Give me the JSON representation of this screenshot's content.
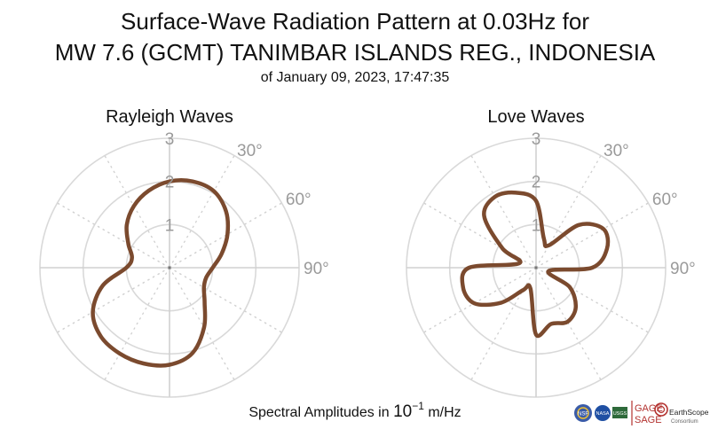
{
  "title": {
    "line1": "Surface-Wave Radiation Pattern at 0.03Hz for",
    "line2": "MW 7.6 (GCMT) TANIMBAR ISLANDS REG., INDONESIA",
    "line3": "of January 09, 2023, 17:47:35"
  },
  "caption": {
    "prefix": "Spectral Amplitudes in ",
    "base": "10",
    "exponent": "−1",
    "unit": " m/Hz"
  },
  "logos": {
    "gage": "GAGE",
    "sage": "SAGE",
    "earthscope": "EarthScope",
    "consortium": "Consortium",
    "usgs": "USGS",
    "nsf": "NSF",
    "nasa": "NASA",
    "colors": {
      "brand_red": "#b3322f",
      "usgs_green": "#2e6a3a",
      "nsf_blue": "#3b5ca8",
      "nasa_blue": "#1f4fa3"
    }
  },
  "chart_data": [
    {
      "type": "polar-line",
      "title": "Rayleigh Waves",
      "r_ticks": [
        "1",
        "2",
        "3"
      ],
      "r_max": 3,
      "theta_zero": "top",
      "theta_direction": "clockwise",
      "theta_labels": [
        "30°",
        "60°",
        "90°"
      ],
      "grid": true,
      "color": "#7b4a2e",
      "series": [
        {
          "theta_deg": [
            0,
            15,
            30,
            45,
            60,
            75,
            90,
            105,
            120,
            135,
            150,
            165,
            180,
            195,
            210,
            225,
            240,
            255,
            270,
            285,
            300,
            315,
            330,
            345
          ],
          "r": [
            2.0,
            2.07,
            2.05,
            1.85,
            1.55,
            1.25,
            1.0,
            0.88,
            0.92,
            1.15,
            1.6,
            2.05,
            2.25,
            2.3,
            2.3,
            2.25,
            2.05,
            1.6,
            1.0,
            0.9,
            1.1,
            1.4,
            1.65,
            1.85
          ]
        }
      ]
    },
    {
      "type": "polar-line",
      "title": "Love Waves",
      "r_ticks": [
        "1",
        "2",
        "3"
      ],
      "r_max": 3,
      "theta_zero": "top",
      "theta_direction": "clockwise",
      "theta_labels": [
        "30°",
        "60°",
        "90°"
      ],
      "grid": true,
      "color": "#7b4a2e",
      "series": [
        {
          "theta_deg": [
            0,
            15,
            30,
            45,
            60,
            75,
            90,
            105,
            120,
            135,
            150,
            165,
            180,
            195,
            210,
            225,
            240,
            255,
            270,
            285,
            300,
            315,
            330,
            345
          ],
          "r": [
            1.55,
            0.7,
            0.6,
            1.4,
            1.8,
            1.7,
            1.3,
            0.3,
            0.9,
            1.3,
            1.45,
            1.35,
            1.55,
            0.5,
            0.6,
            1.15,
            1.65,
            1.75,
            1.55,
            0.4,
            0.9,
            1.7,
            1.9,
            1.8
          ]
        }
      ]
    }
  ]
}
